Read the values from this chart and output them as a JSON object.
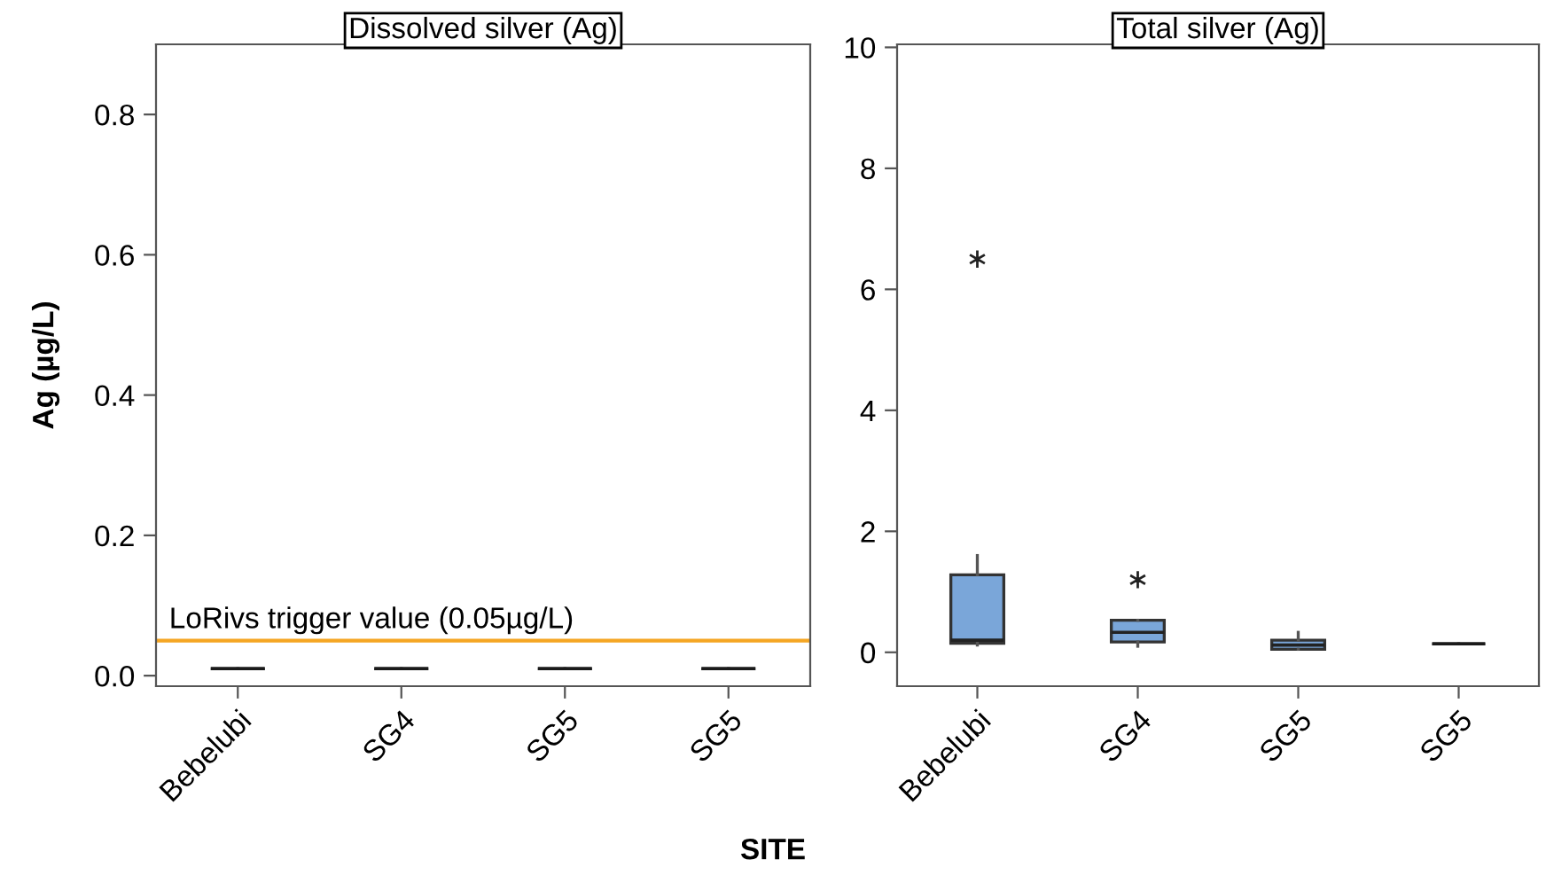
{
  "chart_data": [
    {
      "type": "box",
      "title": "Dissolved silver (Ag)",
      "ylabel": "Ag (µg/L)",
      "xlabel": "SITE",
      "categories": [
        "Bebelubi",
        "SG4",
        "SG5",
        "SG5"
      ],
      "colors": [
        "#1a1a1a",
        "#1a1a1a",
        "#1a1a1a",
        "#1a1a1a"
      ],
      "boxes": [
        {
          "low": 0.01,
          "q1": 0.01,
          "median": 0.01,
          "q3": 0.01,
          "high": 0.01
        },
        {
          "low": 0.01,
          "q1": 0.01,
          "median": 0.01,
          "q3": 0.01,
          "high": 0.01
        },
        {
          "low": 0.01,
          "q1": 0.01,
          "median": 0.01,
          "q3": 0.01,
          "high": 0.01
        },
        {
          "low": 0.01,
          "q1": 0.01,
          "median": 0.01,
          "q3": 0.01,
          "high": 0.01
        }
      ],
      "ylim": [
        -0.015,
        0.9
      ],
      "yticks": [
        {
          "value": 0,
          "label": "0.0"
        },
        0.2,
        0.4,
        0.6,
        0.8
      ],
      "ref_lines": [
        {
          "axis": "y",
          "value": 0.05,
          "label": "LoRivs trigger value (0.05µg/L)",
          "color": "#f5a623"
        }
      ],
      "grid": false,
      "legend": false
    },
    {
      "type": "box",
      "title": "Total silver (Ag)",
      "categories": [
        "Bebelubi",
        "SG4",
        "SG5",
        "SG5"
      ],
      "colors": [
        "#7aa6d9",
        "#7aa6d9",
        "#7aa6d9",
        "#1a1a1a"
      ],
      "boxes": [
        {
          "low": 0.12,
          "q1": 0.15,
          "median": 0.2,
          "q3": 1.28,
          "high": 1.6,
          "outliers": [
            6.5
          ]
        },
        {
          "low": 0.1,
          "q1": 0.17,
          "median": 0.33,
          "q3": 0.53,
          "high": 0.53,
          "outliers": [
            1.2
          ]
        },
        {
          "low": 0.05,
          "q1": 0.05,
          "median": 0.12,
          "q3": 0.2,
          "high": 0.33
        },
        {
          "low": 0.14,
          "q1": 0.14,
          "median": 0.14,
          "q3": 0.14,
          "high": 0.14
        }
      ],
      "ylim": [
        -0.56,
        10.05
      ],
      "yticks": [
        0,
        2,
        4,
        6,
        8,
        10
      ],
      "grid": false,
      "legend": false
    }
  ]
}
